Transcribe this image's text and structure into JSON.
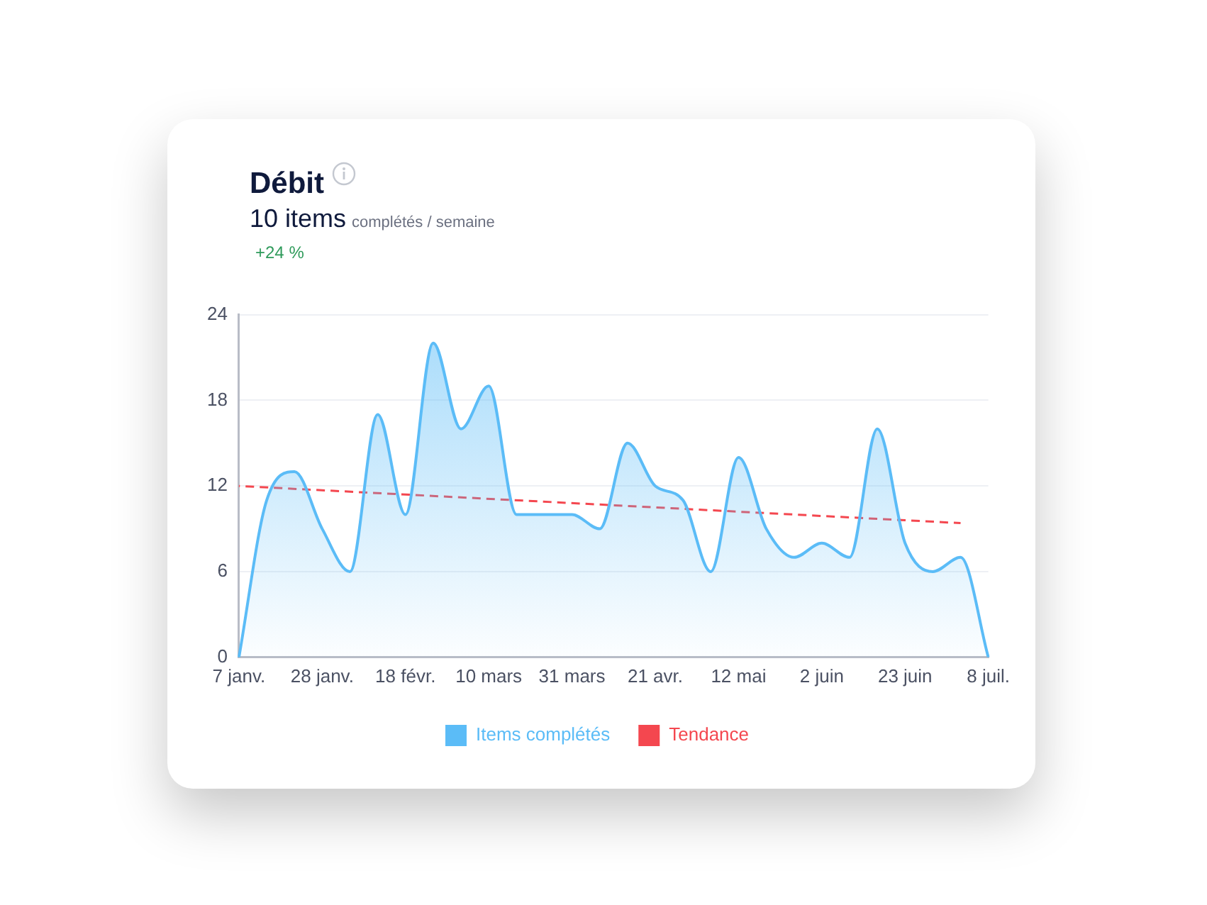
{
  "chart_data": {
    "type": "area",
    "title": "Débit",
    "subtitle": "10 items",
    "annotations": [
      "complétés / semaine",
      "+24 %"
    ],
    "categories": [
      "7 janv.",
      null,
      null,
      "28 janv.",
      null,
      null,
      "18 févr.",
      null,
      null,
      "10 mars",
      null,
      null,
      "31 mars",
      null,
      null,
      "21 avr.",
      null,
      null,
      "12 mai",
      null,
      null,
      "2 juin",
      null,
      null,
      "23 juin",
      null,
      null,
      "8 juil."
    ],
    "series": [
      {
        "name": "Items complétés",
        "color": "#5bbcf7",
        "values": [
          0,
          11,
          13,
          9,
          6,
          17,
          10,
          22,
          16,
          19,
          10,
          10,
          10,
          9,
          15,
          12,
          11,
          6,
          14,
          9,
          7,
          8,
          7,
          16,
          8,
          6,
          7,
          0
        ]
      },
      {
        "name": "Tendance",
        "type": "line",
        "line_style": "dashed",
        "color": "#f4474f",
        "values": [
          12,
          null,
          null,
          null,
          null,
          null,
          null,
          null,
          null,
          null,
          null,
          null,
          null,
          null,
          null,
          null,
          null,
          null,
          null,
          null,
          null,
          null,
          null,
          null,
          null,
          null,
          9.4,
          null
        ]
      }
    ],
    "ylim": [
      0,
      24
    ],
    "yticks": [
      0,
      6,
      12,
      18,
      24
    ],
    "grid": "y",
    "legend": "bottom",
    "marker": "none"
  }
}
